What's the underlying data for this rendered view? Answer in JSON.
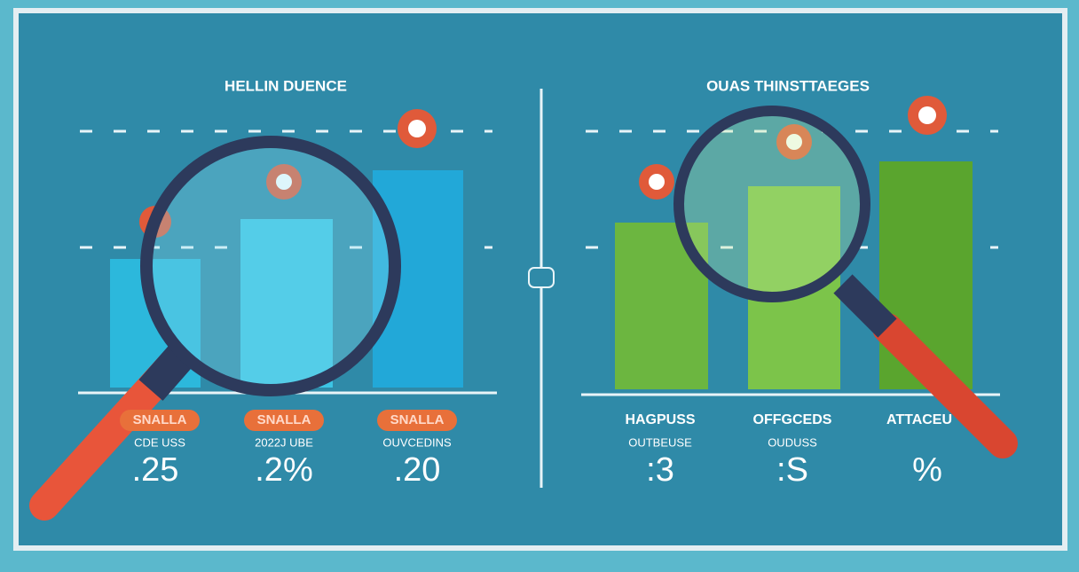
{
  "left_panel": {
    "title": "HELLIN DUENCE",
    "columns": [
      {
        "badge": "SNALLA",
        "caption": "CDE USS",
        "value": ".25"
      },
      {
        "badge": "SNALLA",
        "caption": "2022J UBE",
        "value": ".2%"
      },
      {
        "badge": "SNALLA",
        "caption": "OUVCEDINS",
        "value": ".20"
      }
    ]
  },
  "right_panel": {
    "title": "OUAS THINSTTAEGES",
    "columns": [
      {
        "label": "HAGPUSS",
        "caption": "OUTBEUSE",
        "value": ":3"
      },
      {
        "label": "OFFGCEDS",
        "caption": "OUDUSS",
        "value": ":S"
      },
      {
        "label": "ATTACEU",
        "value": "%"
      }
    ]
  }
}
